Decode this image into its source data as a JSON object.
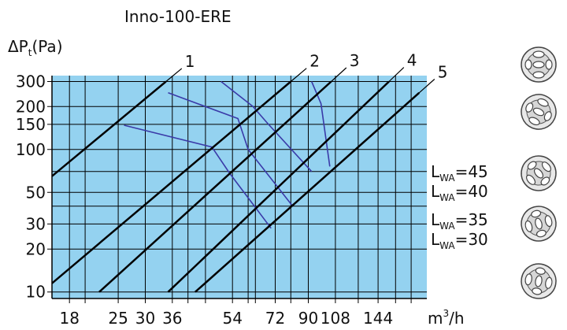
{
  "chart_data": {
    "type": "line",
    "title": "Inno-100-ERE",
    "ylabel_prefix": "ΔP",
    "ylabel_sub": "t",
    "ylabel_suffix": "(Pa)",
    "xunit_base": "m",
    "xunit_sup": "3",
    "xunit_suffix": "/h",
    "xscale": "log",
    "yscale": "log",
    "xlim": [
      16,
      200
    ],
    "ylim": [
      9,
      330
    ],
    "grid": true,
    "background_color": "#94d2f0",
    "x_ticks": [
      {
        "value": 18,
        "label": "18"
      },
      {
        "value": 25,
        "label": "25"
      },
      {
        "value": 30,
        "label": "30"
      },
      {
        "value": 36,
        "label": "36"
      },
      {
        "value": 54,
        "label": "54"
      },
      {
        "value": 72,
        "label": "72"
      },
      {
        "value": 90,
        "label": "90"
      },
      {
        "value": 108,
        "label": "108"
      },
      {
        "value": 144,
        "label": "144"
      }
    ],
    "x_minor_grid": [
      20,
      40,
      45,
      60,
      63,
      80,
      126,
      162,
      180
    ],
    "y_ticks": [
      {
        "value": 10,
        "label": "10"
      },
      {
        "value": 20,
        "label": "20"
      },
      {
        "value": 30,
        "label": "30"
      },
      {
        "value": 50,
        "label": "50"
      },
      {
        "value": 100,
        "label": "100"
      },
      {
        "value": 150,
        "label": "150"
      },
      {
        "value": 200,
        "label": "200"
      },
      {
        "value": 300,
        "label": "300"
      }
    ],
    "y_minor_grid": [
      40,
      70
    ],
    "series": [
      {
        "name": "1",
        "color": "#000000",
        "points": [
          [
            16,
            65
          ],
          [
            34.5,
            300
          ]
        ]
      },
      {
        "name": "2",
        "color": "#000000",
        "points": [
          [
            16,
            11.5
          ],
          [
            80,
            300
          ]
        ]
      },
      {
        "name": "3",
        "color": "#000000",
        "points": [
          [
            22,
            10
          ],
          [
            105,
            300
          ]
        ]
      },
      {
        "name": "4",
        "color": "#000000",
        "points": [
          [
            35,
            10
          ],
          [
            155,
            300
          ]
        ]
      },
      {
        "name": "5",
        "color": "#000000",
        "points": [
          [
            42,
            10
          ],
          [
            190,
            250
          ]
        ]
      }
    ],
    "noise_curves": [
      {
        "name": "",
        "color": "#3a3aa8",
        "points": [
          [
            50,
            300
          ],
          [
            62,
            200
          ],
          [
            68,
            155
          ],
          [
            92,
            70
          ]
        ]
      },
      {
        "name": "",
        "color": "#3a3aa8",
        "points": [
          [
            35,
            250
          ],
          [
            56,
            165
          ],
          [
            60,
            100
          ],
          [
            81,
            40
          ]
        ]
      },
      {
        "name": "",
        "color": "#3a3aa8",
        "points": [
          [
            26,
            148
          ],
          [
            47,
            104
          ],
          [
            53,
            68
          ],
          [
            70,
            28
          ]
        ]
      },
      {
        "name": "",
        "color": "#3a3aa8",
        "points": [
          [
            92,
            300
          ],
          [
            98,
            210
          ],
          [
            104,
            76
          ]
        ]
      }
    ],
    "lwa_labels": [
      {
        "base": "L",
        "sub": "WA",
        "text": "=45"
      },
      {
        "base": "L",
        "sub": "WA",
        "text": "=40"
      },
      {
        "base": "L",
        "sub": "WA",
        "text": "=35"
      },
      {
        "base": "L",
        "sub": "WA",
        "text": "=30"
      }
    ],
    "valve_icons": [
      "valve-setting-icon-1",
      "valve-setting-icon-2",
      "valve-setting-icon-3",
      "valve-setting-icon-4",
      "valve-setting-icon-5"
    ]
  }
}
